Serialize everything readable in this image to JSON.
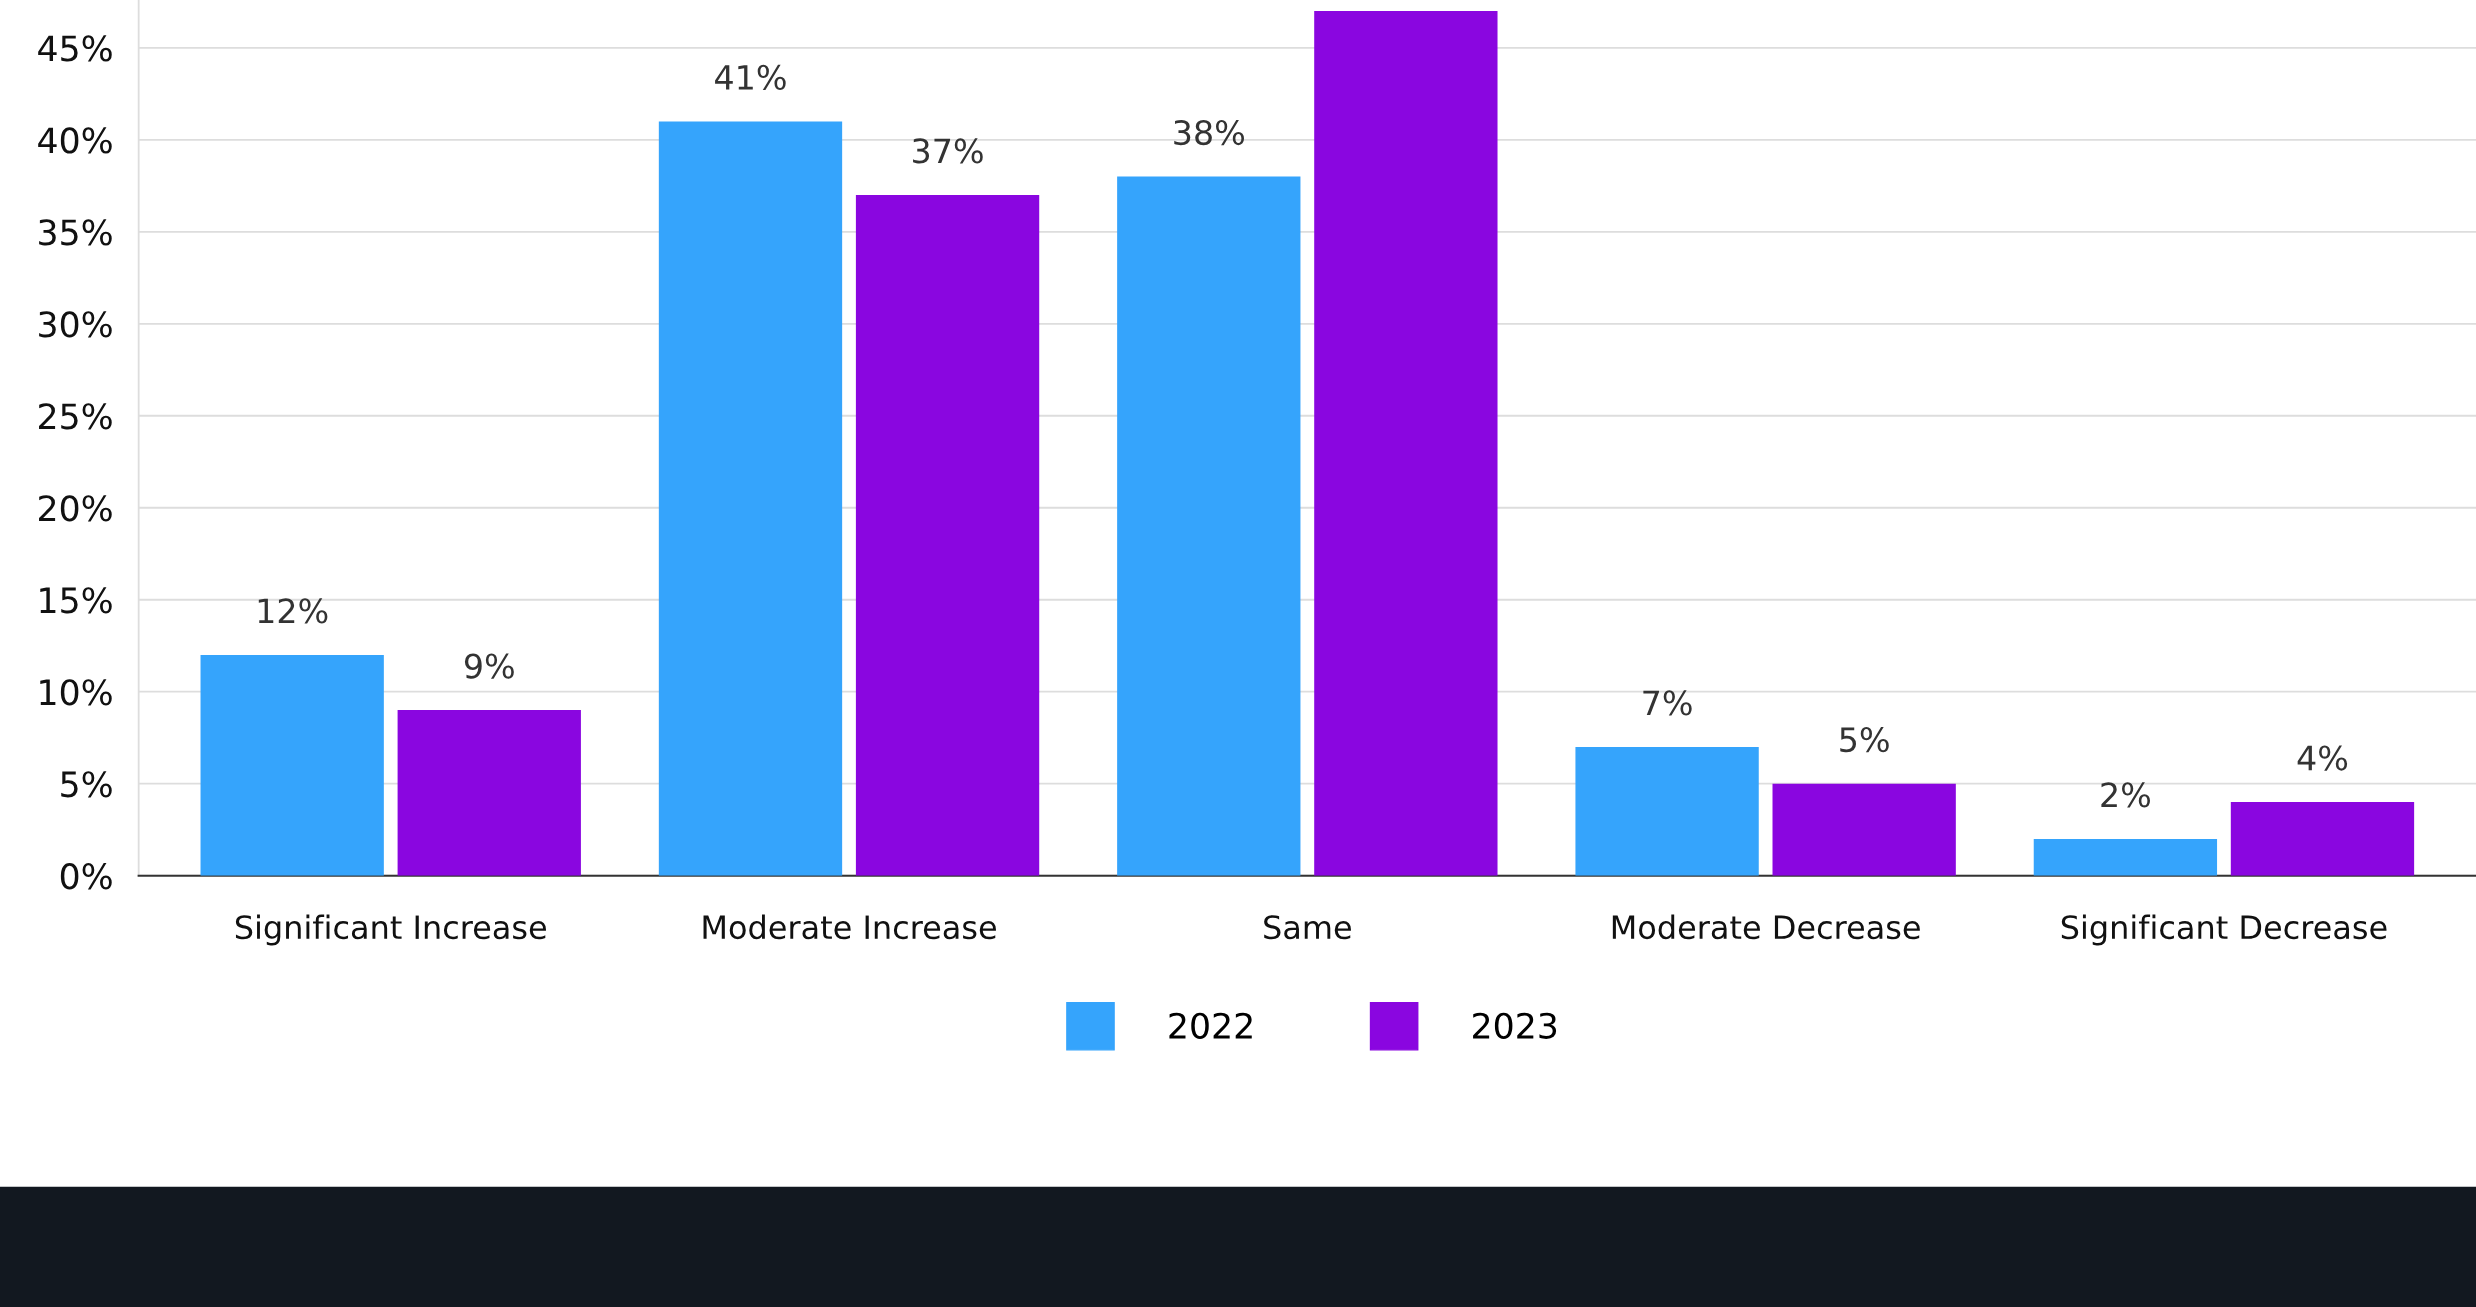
{
  "chart_data": {
    "type": "bar",
    "categories": [
      "Significant Increase",
      "Moderate Increase",
      "Same",
      "Moderate Decrease",
      "Significant Decrease"
    ],
    "series": [
      {
        "name": "2022",
        "color": "#35a4fc",
        "values": [
          12,
          41,
          38,
          7,
          2
        ],
        "value_labels": [
          "12%",
          "41%",
          "38%",
          "7%",
          "2%"
        ]
      },
      {
        "name": "2023",
        "color": "#8a06e0",
        "values": [
          9,
          37,
          47,
          5,
          4
        ],
        "value_labels": [
          "9%",
          "37%",
          null,
          "5%",
          "4%"
        ]
      }
    ],
    "ylim": [
      0,
      47.6
    ],
    "yticks": [
      {
        "value": 0,
        "label": "0%"
      },
      {
        "value": 5,
        "label": "5%"
      },
      {
        "value": 10,
        "label": "10%"
      },
      {
        "value": 15,
        "label": "15%"
      },
      {
        "value": 20,
        "label": "20%"
      },
      {
        "value": 25,
        "label": "25%"
      },
      {
        "value": 30,
        "label": "30%"
      },
      {
        "value": 35,
        "label": "35%"
      },
      {
        "value": 40,
        "label": "40%"
      },
      {
        "value": 45,
        "label": "45%"
      }
    ],
    "grid": "y",
    "legend": "bottom"
  }
}
